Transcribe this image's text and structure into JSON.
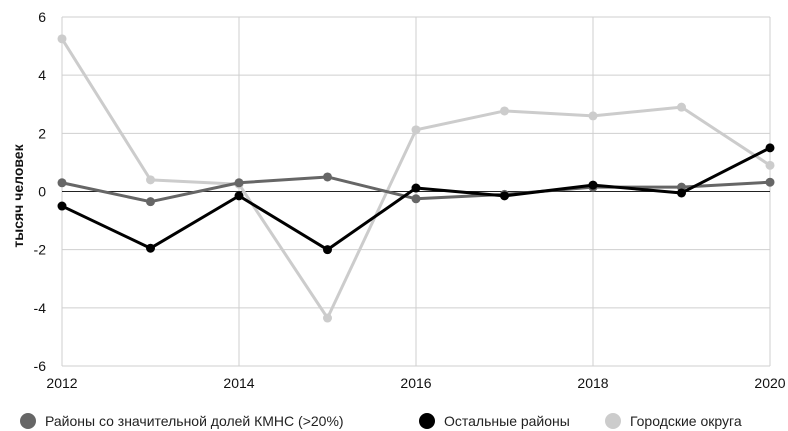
{
  "chart_data": {
    "type": "line",
    "ylabel": "тысяч человек",
    "xlabel": "",
    "xlim": [
      2012,
      2020
    ],
    "ylim": [
      -6,
      6
    ],
    "x": [
      2012,
      2013,
      2014,
      2015,
      2016,
      2017,
      2018,
      2019,
      2020
    ],
    "x_ticks": [
      "2012",
      "2014",
      "2016",
      "2018",
      "2020"
    ],
    "y_ticks": [
      "6",
      "4",
      "2",
      "0",
      "-2",
      "-4",
      "-6"
    ],
    "grid": true,
    "legend_position": "bottom",
    "series": [
      {
        "name": "Районы со значительной долей КМНС (>20%)",
        "color": "#666666",
        "values": [
          0.3,
          -0.35,
          0.3,
          0.5,
          -0.25,
          -0.1,
          0.15,
          0.15,
          0.32
        ]
      },
      {
        "name": "Остальные районы",
        "color": "#000000",
        "values": [
          -0.5,
          -1.95,
          -0.15,
          -2.0,
          0.12,
          -0.15,
          0.22,
          -0.05,
          1.5
        ]
      },
      {
        "name": "Городские округа",
        "color": "#cccccc",
        "values": [
          5.25,
          0.4,
          0.25,
          -4.35,
          2.12,
          2.77,
          2.6,
          2.9,
          0.9
        ]
      }
    ]
  }
}
